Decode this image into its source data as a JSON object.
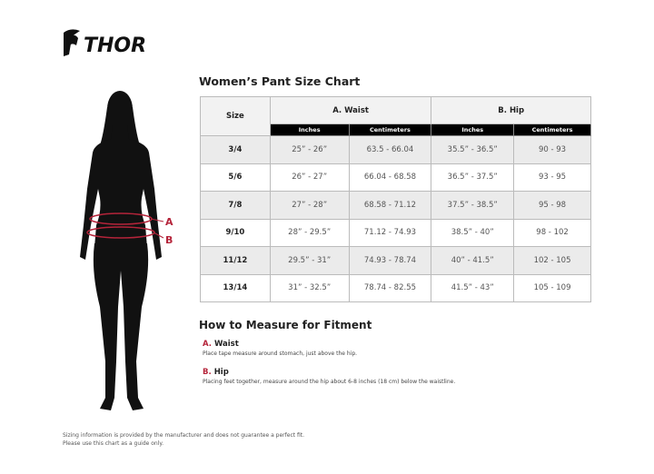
{
  "brand": "THOR",
  "figure_labels": {
    "a": "A",
    "b": "B"
  },
  "chart": {
    "title": "Women’s Pant Size Chart",
    "size_header": "Size",
    "groups": [
      "A. Waist",
      "B. Hip"
    ],
    "subheaders": [
      "Inches",
      "Centimeters",
      "Inches",
      "Centimeters"
    ],
    "rows": [
      {
        "size": "3/4",
        "waist_in": "25” - 26”",
        "waist_cm": "63.5 - 66.04",
        "hip_in": "35.5” - 36.5”",
        "hip_cm": "90 - 93"
      },
      {
        "size": "5/6",
        "waist_in": "26” - 27”",
        "waist_cm": "66.04 - 68.58",
        "hip_in": "36.5” - 37.5”",
        "hip_cm": "93 - 95"
      },
      {
        "size": "7/8",
        "waist_in": "27” - 28”",
        "waist_cm": "68.58 - 71.12",
        "hip_in": "37.5” - 38.5”",
        "hip_cm": "95 - 98"
      },
      {
        "size": "9/10",
        "waist_in": "28” - 29.5”",
        "waist_cm": "71.12 - 74.93",
        "hip_in": "38.5” - 40”",
        "hip_cm": "98 - 102"
      },
      {
        "size": "11/12",
        "waist_in": "29.5” - 31”",
        "waist_cm": "74.93 - 78.74",
        "hip_in": "40” - 41.5”",
        "hip_cm": "102 - 105"
      },
      {
        "size": "13/14",
        "waist_in": "31” - 32.5”",
        "waist_cm": "78.74 - 82.55",
        "hip_in": "41.5” - 43”",
        "hip_cm": "105 - 109"
      }
    ]
  },
  "measure": {
    "title": "How to Measure for Fitment",
    "items": [
      {
        "letter": "A.",
        "name": "Waist",
        "desc": "Place tape measure around stomach, just above the hip."
      },
      {
        "letter": "B.",
        "name": "Hip",
        "desc": "Placing feet together, measure around the hip about 6-8 inches (18 cm) below the waistline."
      }
    ]
  },
  "footer": [
    "Sizing information is provided by the manufacturer and does not guarantee a perfect fit.",
    "Please use this chart as a guide only."
  ],
  "colors": {
    "accent": "#b5243a",
    "header_bar": "#000000",
    "row_shade": "#ebebeb"
  }
}
